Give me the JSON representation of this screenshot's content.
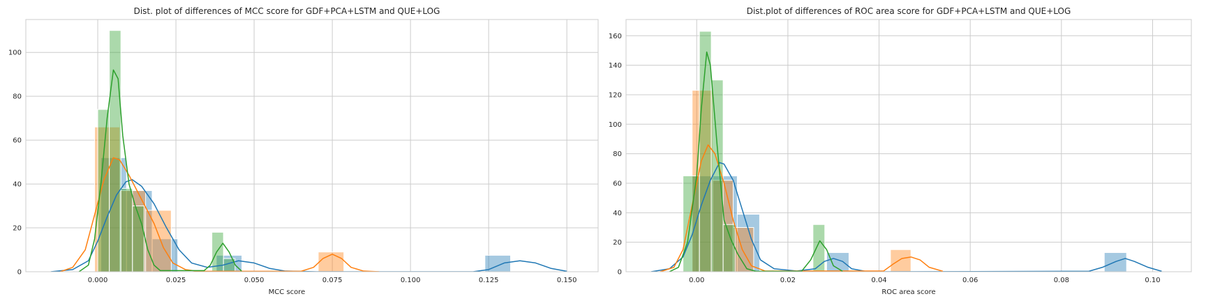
{
  "colors": {
    "blue": "#1f77b4",
    "orange": "#ff7f0e",
    "green": "#2ca02c"
  },
  "chart_data": [
    {
      "type": "histogram+kde",
      "title": "Dist. plot of differences of MCC score for GDF+PCA+LSTM and QUE+LOG",
      "xlabel": "MCC score",
      "ylabel": "",
      "xlim": [
        -0.023,
        0.16
      ],
      "ylim": [
        0,
        115
      ],
      "xticks": [
        0.0,
        0.025,
        0.05,
        0.075,
        0.1,
        0.125,
        0.15
      ],
      "xtick_labels": [
        "0.000",
        "0.025",
        "0.050",
        "0.075",
        "0.100",
        "0.125",
        "0.150"
      ],
      "yticks": [
        0,
        20,
        40,
        60,
        80,
        100
      ],
      "ytick_labels": [
        "0",
        "20",
        "40",
        "60",
        "80",
        "100"
      ],
      "grid": true,
      "series": [
        {
          "color": "blue",
          "bins": [
            [
              0.001,
              0.0092,
              52
            ],
            [
              0.0092,
              0.0174,
              37
            ],
            [
              0.0174,
              0.0256,
              15
            ],
            [
              0.0379,
              0.0461,
              7.5
            ],
            [
              0.1238,
              0.132,
              7.5
            ]
          ],
          "kde": [
            [
              -0.015,
              0
            ],
            [
              -0.008,
              1
            ],
            [
              -0.003,
              5
            ],
            [
              0.0,
              14
            ],
            [
              0.003,
              25
            ],
            [
              0.006,
              35
            ],
            [
              0.009,
              41
            ],
            [
              0.011,
              42
            ],
            [
              0.014,
              39
            ],
            [
              0.018,
              31
            ],
            [
              0.022,
              20
            ],
            [
              0.026,
              10
            ],
            [
              0.03,
              4
            ],
            [
              0.035,
              2
            ],
            [
              0.04,
              3
            ],
            [
              0.045,
              5
            ],
            [
              0.05,
              4
            ],
            [
              0.055,
              1.5
            ],
            [
              0.06,
              0.3
            ],
            [
              0.07,
              0
            ],
            [
              0.12,
              0
            ],
            [
              0.125,
              1
            ],
            [
              0.13,
              4
            ],
            [
              0.135,
              5
            ],
            [
              0.14,
              4
            ],
            [
              0.145,
              1.5
            ],
            [
              0.15,
              0.2
            ]
          ]
        },
        {
          "color": "orange",
          "bins": [
            [
              -0.001,
              0.0071,
              66
            ],
            [
              0.0071,
              0.0153,
              37
            ],
            [
              0.0153,
              0.0235,
              28
            ],
            [
              0.0705,
              0.0787,
              9
            ]
          ],
          "kde": [
            [
              -0.012,
              0
            ],
            [
              -0.008,
              2
            ],
            [
              -0.004,
              10
            ],
            [
              -0.001,
              26
            ],
            [
              0.002,
              42
            ],
            [
              0.005,
              52
            ],
            [
              0.007,
              51
            ],
            [
              0.01,
              44
            ],
            [
              0.014,
              33
            ],
            [
              0.018,
              22
            ],
            [
              0.021,
              11
            ],
            [
              0.024,
              4
            ],
            [
              0.028,
              1
            ],
            [
              0.032,
              0.2
            ],
            [
              0.065,
              0.2
            ],
            [
              0.069,
              2
            ],
            [
              0.072,
              6
            ],
            [
              0.075,
              8
            ],
            [
              0.078,
              6
            ],
            [
              0.081,
              2
            ],
            [
              0.085,
              0.3
            ],
            [
              0.09,
              0
            ]
          ]
        },
        {
          "color": "green",
          "bins": [
            [
              0.0,
              0.0037,
              74
            ],
            [
              0.0037,
              0.0074,
              110
            ],
            [
              0.0074,
              0.0111,
              38
            ],
            [
              0.0111,
              0.0148,
              30
            ],
            [
              0.0365,
              0.0402,
              18
            ],
            [
              0.0402,
              0.0439,
              6
            ]
          ],
          "kde": [
            [
              -0.006,
              0
            ],
            [
              -0.003,
              3
            ],
            [
              -0.001,
              15
            ],
            [
              0.001,
              40
            ],
            [
              0.003,
              70
            ],
            [
              0.005,
              92
            ],
            [
              0.0065,
              88
            ],
            [
              0.008,
              62
            ],
            [
              0.01,
              40
            ],
            [
              0.012,
              30
            ],
            [
              0.014,
              22
            ],
            [
              0.016,
              10
            ],
            [
              0.018,
              3
            ],
            [
              0.02,
              0.5
            ],
            [
              0.034,
              0.5
            ],
            [
              0.036,
              3
            ],
            [
              0.038,
              9
            ],
            [
              0.04,
              13
            ],
            [
              0.042,
              9
            ],
            [
              0.044,
              3
            ],
            [
              0.046,
              0.3
            ]
          ]
        }
      ]
    },
    {
      "type": "histogram+kde",
      "title": "Dist.plot of differences of ROC area score for GDF+PCA+LSTM and QUE+LOG",
      "xlabel": "ROC area score",
      "ylabel": "",
      "xlim": [
        -0.0155,
        0.1085
      ],
      "ylim": [
        0,
        171
      ],
      "xticks": [
        0.0,
        0.02,
        0.04,
        0.06,
        0.08,
        0.1
      ],
      "xtick_labels": [
        "0.00",
        "0.02",
        "0.04",
        "0.06",
        "0.08",
        "0.10"
      ],
      "yticks": [
        0,
        20,
        40,
        60,
        80,
        100,
        120,
        140,
        160
      ],
      "ytick_labels": [
        "0",
        "20",
        "40",
        "60",
        "80",
        "100",
        "120",
        "140",
        "160"
      ],
      "grid": true,
      "series": [
        {
          "color": "blue",
          "bins": [
            [
              -0.001,
              0.0089,
              65
            ],
            [
              0.0089,
              0.0138,
              39
            ],
            [
              0.0285,
              0.0334,
              13
            ],
            [
              0.0894,
              0.0943,
              13
            ]
          ],
          "kde": [
            [
              -0.01,
              0
            ],
            [
              -0.006,
              2
            ],
            [
              -0.003,
              10
            ],
            [
              -0.001,
              25
            ],
            [
              0.001,
              45
            ],
            [
              0.003,
              62
            ],
            [
              0.005,
              74
            ],
            [
              0.006,
              73
            ],
            [
              0.008,
              62
            ],
            [
              0.01,
              42
            ],
            [
              0.012,
              22
            ],
            [
              0.014,
              8
            ],
            [
              0.017,
              2
            ],
            [
              0.022,
              0.5
            ],
            [
              0.026,
              2
            ],
            [
              0.028,
              7
            ],
            [
              0.03,
              9
            ],
            [
              0.032,
              7
            ],
            [
              0.034,
              2
            ],
            [
              0.037,
              0.3
            ],
            [
              0.04,
              0
            ],
            [
              0.086,
              0.3
            ],
            [
              0.089,
              3
            ],
            [
              0.092,
              7
            ],
            [
              0.094,
              9
            ],
            [
              0.096,
              7
            ],
            [
              0.099,
              3
            ],
            [
              0.102,
              0.3
            ]
          ]
        },
        {
          "color": "orange",
          "bins": [
            [
              -0.001,
              0.0035,
              123
            ],
            [
              0.0035,
              0.008,
              62
            ],
            [
              0.008,
              0.0125,
              30
            ],
            [
              0.0425,
              0.047,
              15
            ]
          ],
          "kde": [
            [
              -0.008,
              0
            ],
            [
              -0.005,
              3
            ],
            [
              -0.003,
              15
            ],
            [
              -0.001,
              45
            ],
            [
              0.001,
              75
            ],
            [
              0.0025,
              86
            ],
            [
              0.004,
              80
            ],
            [
              0.006,
              60
            ],
            [
              0.008,
              35
            ],
            [
              0.01,
              15
            ],
            [
              0.012,
              4
            ],
            [
              0.015,
              0.5
            ],
            [
              0.041,
              0.5
            ],
            [
              0.043,
              5
            ],
            [
              0.045,
              9
            ],
            [
              0.047,
              10
            ],
            [
              0.049,
              8
            ],
            [
              0.051,
              3
            ],
            [
              0.054,
              0.3
            ]
          ]
        },
        {
          "color": "green",
          "bins": [
            [
              -0.003,
              0.0006,
              65
            ],
            [
              0.0006,
              0.0032,
              163
            ],
            [
              0.0032,
              0.0058,
              130
            ],
            [
              0.0058,
              0.0084,
              32
            ],
            [
              0.0255,
              0.0281,
              32
            ]
          ],
          "kde": [
            [
              -0.006,
              0
            ],
            [
              -0.004,
              3
            ],
            [
              -0.002,
              20
            ],
            [
              0.0,
              65
            ],
            [
              0.001,
              110
            ],
            [
              0.0022,
              149
            ],
            [
              0.003,
              140
            ],
            [
              0.0045,
              85
            ],
            [
              0.006,
              35
            ],
            [
              0.0075,
              22
            ],
            [
              0.009,
              12
            ],
            [
              0.011,
              2
            ],
            [
              0.013,
              0.3
            ],
            [
              0.023,
              0.3
            ],
            [
              0.025,
              8
            ],
            [
              0.027,
              21
            ],
            [
              0.0285,
              15
            ],
            [
              0.03,
              4
            ],
            [
              0.032,
              0.3
            ]
          ]
        }
      ]
    }
  ]
}
